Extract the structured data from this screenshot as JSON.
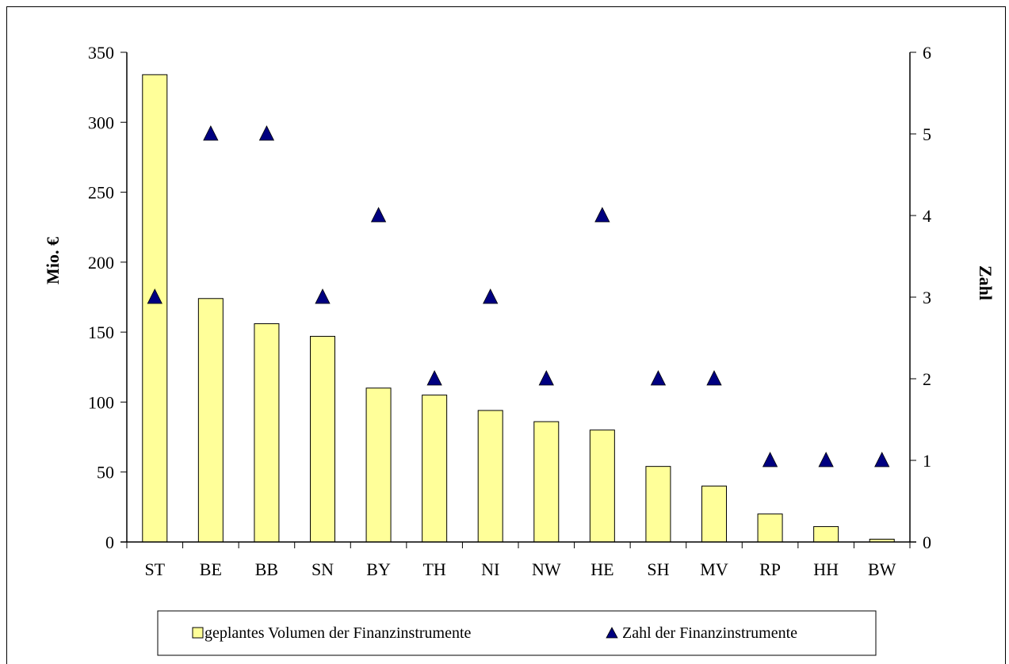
{
  "chart_data": {
    "type": "bar",
    "categories": [
      "ST",
      "BE",
      "BB",
      "SN",
      "BY",
      "TH",
      "NI",
      "NW",
      "HE",
      "SH",
      "MV",
      "RP",
      "HH",
      "BW"
    ],
    "series": [
      {
        "name": "geplantes Volumen der Finanzinstrumente",
        "type": "bar",
        "axis": "left",
        "color": "#ffff99",
        "values": [
          334,
          174,
          156,
          147,
          110,
          105,
          94,
          86,
          80,
          54,
          40,
          20,
          11,
          2
        ]
      },
      {
        "name": "Zahl der Finanzinstrumente",
        "type": "scatter",
        "marker": "triangle",
        "axis": "right",
        "color": "#000080",
        "values": [
          3,
          5,
          5,
          3,
          4,
          2,
          3,
          2,
          4,
          2,
          2,
          1,
          1,
          1
        ]
      }
    ],
    "ylabel": "Mio. €",
    "ylabel_right": "Zahl",
    "ylim": [
      0,
      350
    ],
    "yticks": [
      0,
      50,
      100,
      150,
      200,
      250,
      300,
      350
    ],
    "ylim_right": [
      0,
      6
    ],
    "yticks_right": [
      0,
      1,
      2,
      3,
      4,
      5,
      6
    ],
    "grid": false,
    "legend_position": "bottom"
  }
}
